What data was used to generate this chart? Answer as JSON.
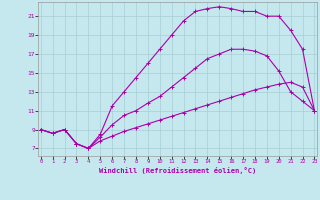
{
  "xlabel": "Windchill (Refroidissement éolien,°C)",
  "bg_color": "#c5e8ef",
  "grid_color": "#a8cdd4",
  "line_color": "#aa00aa",
  "x_ticks": [
    0,
    1,
    2,
    3,
    4,
    5,
    6,
    7,
    8,
    9,
    10,
    11,
    12,
    13,
    14,
    15,
    16,
    17,
    18,
    19,
    20,
    21,
    22,
    23
  ],
  "y_ticks": [
    7,
    9,
    11,
    13,
    15,
    17,
    19,
    21
  ],
  "xlim": [
    -0.2,
    23.2
  ],
  "ylim": [
    6.2,
    22.5
  ],
  "series1_x": [
    0,
    1,
    2,
    3,
    4,
    5,
    6,
    7,
    8,
    9,
    10,
    11,
    12,
    13,
    14,
    15,
    16,
    17,
    18,
    19,
    20,
    21,
    22,
    23
  ],
  "series1_y": [
    9.0,
    8.6,
    9.0,
    7.5,
    7.0,
    8.5,
    11.5,
    13.0,
    14.5,
    16.0,
    17.5,
    19.0,
    20.5,
    21.5,
    21.8,
    22.0,
    21.8,
    21.5,
    21.5,
    21.0,
    21.0,
    19.5,
    17.5,
    11.0
  ],
  "series2_x": [
    0,
    1,
    2,
    3,
    4,
    5,
    6,
    7,
    8,
    9,
    10,
    11,
    12,
    13,
    14,
    15,
    16,
    17,
    18,
    19,
    20,
    21,
    22,
    23
  ],
  "series2_y": [
    9.0,
    8.6,
    9.0,
    7.5,
    7.0,
    8.2,
    9.5,
    10.5,
    11.0,
    11.8,
    12.5,
    13.5,
    14.5,
    15.5,
    16.5,
    17.0,
    17.5,
    17.5,
    17.3,
    16.8,
    15.2,
    13.0,
    12.0,
    11.0
  ],
  "series3_x": [
    0,
    1,
    2,
    3,
    4,
    5,
    6,
    7,
    8,
    9,
    10,
    11,
    12,
    13,
    14,
    15,
    16,
    17,
    18,
    19,
    20,
    21,
    22,
    23
  ],
  "series3_y": [
    9.0,
    8.6,
    9.0,
    7.5,
    7.0,
    7.8,
    8.3,
    8.8,
    9.2,
    9.6,
    10.0,
    10.4,
    10.8,
    11.2,
    11.6,
    12.0,
    12.4,
    12.8,
    13.2,
    13.5,
    13.8,
    14.0,
    13.5,
    11.0
  ]
}
